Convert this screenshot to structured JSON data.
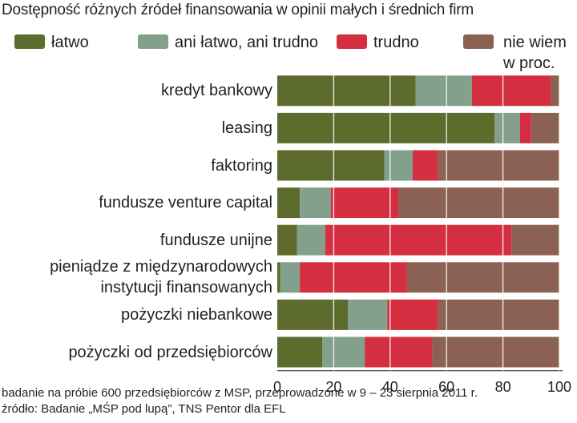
{
  "title": "Dostępność różnych źródeł finansowania w opinii małych i średnich firm",
  "legend": [
    {
      "label": "łatwo",
      "color": "#5d6b2d"
    },
    {
      "label": "ani łatwo, ani trudno",
      "color": "#82a08c"
    },
    {
      "label": "trudno",
      "color": "#d42f40"
    },
    {
      "label": "nie wiem",
      "color": "#8b6154"
    }
  ],
  "unit_label": "w proc.",
  "footer": {
    "line1": "badanie na próbie 600 przedsiębiorców z MSP, przeprowadzone w 9 – 23 sierpnia 2011 r.",
    "line2": "źródło: Badanie „MŚP pod lupą”, TNS Pentor dla EFL"
  },
  "chart_data": {
    "type": "bar",
    "orientation": "horizontal",
    "stacked": true,
    "title": "Dostępność różnych źródeł finansowania w opinii małych i średnich firm",
    "categories": [
      "kredyt bankowy",
      "leasing",
      "faktoring",
      "fundusze venture capital",
      "fundusze unijne",
      "pieniądze z międzynarodowych instytucji finansowanych",
      "pożyczki niebankowe",
      "pożyczki od przedsiębiorców"
    ],
    "category_lines": [
      [
        "kredyt bankowy"
      ],
      [
        "leasing"
      ],
      [
        "faktoring"
      ],
      [
        "fundusze venture capital"
      ],
      [
        "fundusze unijne"
      ],
      [
        "pieniądze z międzynarodowych",
        "instytucji finansowanych"
      ],
      [
        "pożyczki niebankowe"
      ],
      [
        "pożyczki od przedsiębiorców"
      ]
    ],
    "series": [
      {
        "name": "łatwo",
        "color": "#5d6b2d",
        "values": [
          49,
          77,
          38,
          8,
          7,
          1,
          25,
          16
        ]
      },
      {
        "name": "ani łatwo, ani trudno",
        "color": "#82a08c",
        "values": [
          20,
          9,
          10,
          11,
          10,
          7,
          14,
          15
        ]
      },
      {
        "name": "trudno",
        "color": "#d42f40",
        "values": [
          28,
          4,
          9,
          24,
          66,
          38,
          18,
          24
        ]
      },
      {
        "name": "nie wiem",
        "color": "#8b6154",
        "values": [
          3,
          10,
          43,
          57,
          17,
          54,
          43,
          45
        ]
      }
    ],
    "xlim": [
      0,
      100
    ],
    "xticks": [
      0,
      20,
      40,
      60,
      80,
      100
    ],
    "xlabel": "",
    "ylabel": "",
    "grid": true,
    "legend_position": "top"
  }
}
